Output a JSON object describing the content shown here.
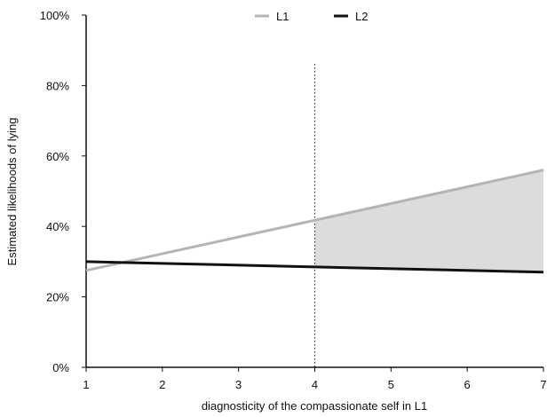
{
  "chart_data": {
    "type": "line",
    "xlabel": "diagnosticity of the compassionate self in L1",
    "ylabel": "Estimated likelihoods of lying",
    "xlim": [
      1,
      7
    ],
    "ylim": [
      0,
      100
    ],
    "x_ticks": [
      "1",
      "2",
      "3",
      "4",
      "5",
      "6",
      "7"
    ],
    "y_ticks": [
      "0%",
      "20%",
      "40%",
      "60%",
      "80%",
      "100%"
    ],
    "reference_line_x": 4,
    "shaded_region_x": [
      4,
      7
    ],
    "legend_position": "top-center",
    "series": [
      {
        "name": "L1",
        "color": "#b4b4b4",
        "x": [
          1,
          7
        ],
        "y": [
          27.5,
          56
        ]
      },
      {
        "name": "L2",
        "color": "#111111",
        "x": [
          1,
          7
        ],
        "y": [
          30,
          27
        ]
      }
    ],
    "shade_color": "#dcdcdc"
  }
}
